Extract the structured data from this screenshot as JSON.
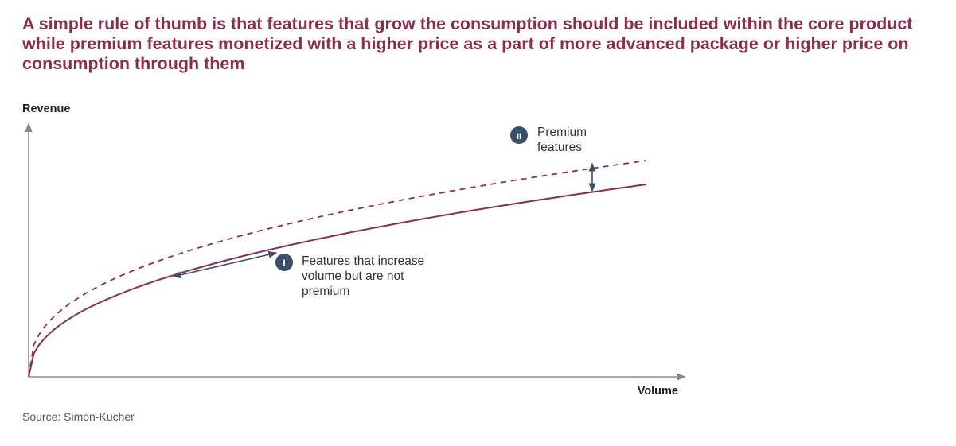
{
  "headline": "A simple rule of thumb is that features that grow the consumption should be included within the core product while premium features monetized with a higher price as a part of more advanced package or higher price on consumption through them",
  "axes": {
    "y_label": "Revenue",
    "x_label": "Volume"
  },
  "annotations": {
    "one": {
      "badge": "I",
      "lines": [
        "Features that increase",
        "volume but are not",
        "premium"
      ]
    },
    "two": {
      "badge": "II",
      "lines": [
        "Premium",
        "features"
      ]
    }
  },
  "source": "Source: Simon-Kucher",
  "colors": {
    "headline": "#8b2e46",
    "curve": "#8b2e46",
    "axis": "#888888",
    "arrow": "#3b4f6b",
    "badge": "#3b4f6b"
  }
}
